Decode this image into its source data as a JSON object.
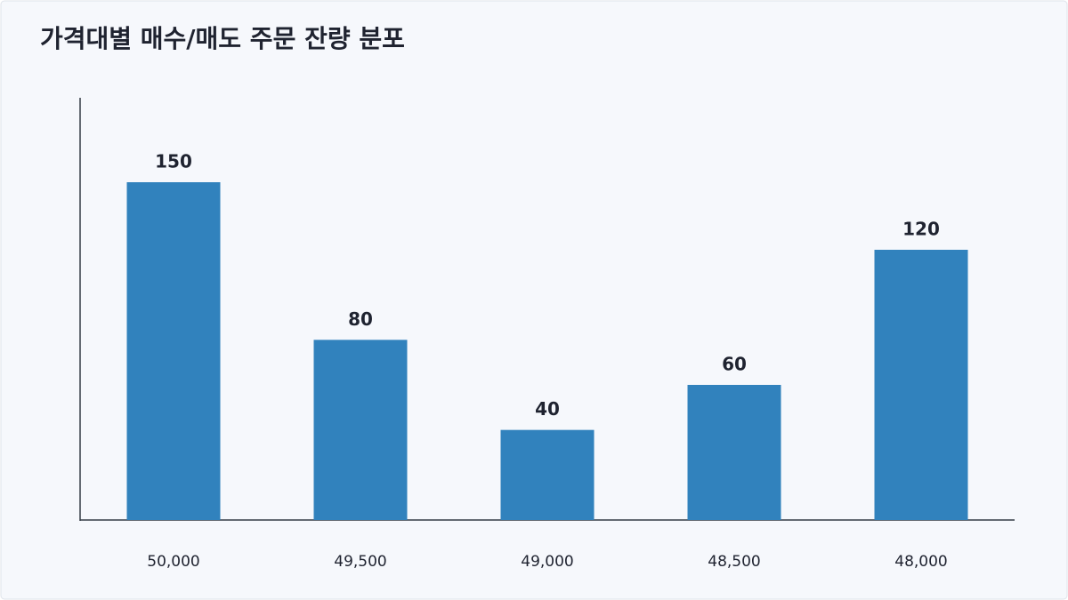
{
  "chart_data": {
    "type": "bar",
    "title": "가격대별 매수/매도 주문 잔량 분포",
    "categories": [
      "50,000",
      "49,500",
      "49,000",
      "48,500",
      "48,000"
    ],
    "values": [
      150,
      80,
      40,
      60,
      120
    ],
    "color": "#3182bd",
    "ylim": [
      0,
      187.5
    ],
    "data_labels": true
  }
}
